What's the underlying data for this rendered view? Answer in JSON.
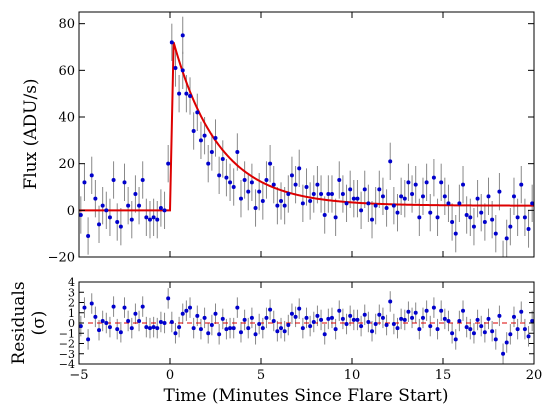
{
  "chart_data": [
    {
      "type": "scatter",
      "title": "",
      "xlabel": "Time (Minutes Since Flare Start)",
      "ylabel": "Flux (ADU/s)",
      "xlim": [
        -5,
        20
      ],
      "ylim": [
        -20,
        85
      ],
      "xticks": [
        "−5",
        "0",
        "5",
        "10",
        "15",
        "20"
      ],
      "yticks": [
        "−20",
        "0",
        "20",
        "40",
        "60",
        "80"
      ],
      "grid": false,
      "legend": "none",
      "colors": {
        "points": "#0000cc",
        "errorbars": "#888888",
        "model": "#dd0000"
      },
      "series": [
        {
          "kind": "data_points_with_errorbars",
          "errorbar": 8,
          "x": [
            -4.9,
            -4.7,
            -4.5,
            -4.3,
            -4.1,
            -3.9,
            -3.7,
            -3.5,
            -3.3,
            -3.1,
            -2.9,
            -2.7,
            -2.5,
            -2.3,
            -2.1,
            -1.9,
            -1.7,
            -1.5,
            -1.3,
            -1.1,
            -0.9,
            -0.7,
            -0.5,
            -0.3,
            -0.1,
            0.1,
            0.3,
            0.5,
            0.7,
            0.9,
            1.1,
            1.3,
            1.5,
            1.7,
            1.9,
            2.1,
            2.3,
            2.5,
            2.7,
            2.9,
            3.1,
            3.3,
            3.5,
            3.7,
            3.9,
            4.1,
            4.3,
            4.5,
            4.7,
            4.9,
            5.1,
            5.3,
            5.5,
            5.7,
            5.9,
            6.1,
            6.3,
            6.5,
            6.7,
            6.9,
            7.1,
            7.3,
            7.5,
            7.7,
            7.9,
            8.1,
            8.3,
            8.5,
            8.7,
            8.9,
            9.1,
            9.3,
            9.5,
            9.7,
            9.9,
            10.1,
            10.3,
            10.5,
            10.7,
            10.9,
            11.1,
            11.3,
            11.5,
            11.7,
            11.9,
            12.1,
            12.3,
            12.5,
            12.7,
            12.9,
            13.1,
            13.3,
            13.5,
            13.7,
            13.9,
            14.1,
            14.3,
            14.5,
            14.7,
            14.9,
            15.1,
            15.3,
            15.5,
            15.7,
            15.9,
            16.1,
            16.3,
            16.5,
            16.7,
            16.9,
            17.1,
            17.3,
            17.5,
            17.7,
            17.9,
            18.1,
            18.3,
            18.5,
            18.7,
            18.9,
            19.1,
            19.3,
            19.5,
            19.7,
            19.9
          ],
          "y": [
            -2,
            12,
            -11,
            15,
            5,
            -6,
            2,
            0,
            -3,
            13,
            -5,
            -7,
            12,
            2,
            -4,
            7,
            2,
            13,
            -3,
            -4,
            -3,
            -4,
            1,
            0,
            20,
            72,
            61,
            50,
            60,
            50,
            49,
            34,
            42,
            30,
            32,
            20,
            25,
            31,
            15,
            22,
            14,
            12,
            10,
            25,
            5,
            13,
            8,
            12,
            1,
            8,
            4,
            13,
            20,
            11,
            2,
            4,
            2,
            7,
            15,
            11,
            18,
            3,
            10,
            4,
            7,
            11,
            7,
            -2,
            7,
            7,
            -3,
            13,
            7,
            3,
            9,
            5,
            5,
            0,
            9,
            3,
            -4,
            2,
            9,
            6,
            1,
            21,
            2,
            -1,
            6,
            5,
            12,
            7,
            11,
            -3,
            6,
            12,
            -1,
            14,
            -3,
            12,
            6,
            3,
            -5,
            -10,
            3,
            11,
            -2,
            -3,
            -7,
            5,
            -1,
            -5,
            6,
            -4,
            -10,
            8,
            -21,
            -12,
            -7,
            6,
            -3,
            11,
            -3,
            -8,
            3
          ],
          "notable_points": [
            {
              "x": 0.7,
              "y": 75
            }
          ]
        },
        {
          "kind": "model_curve",
          "form": "flat zero baseline, linear rise from t=0 to peak 72 at t=0.2 min, then decay toward ~2 (tau ≈ 2.5 min)",
          "peak_time": 0.2,
          "peak_flux": 72
        }
      ]
    },
    {
      "type": "scatter",
      "title": "",
      "xlabel": "Time (Minutes Since Flare Start)",
      "ylabel": "Residuals",
      "ylabel2": "(σ)",
      "xlim": [
        -5,
        20
      ],
      "ylim": [
        -4,
        4
      ],
      "yticks": [
        "4",
        "3",
        "2",
        "1",
        "0",
        "−1",
        "−2",
        "−3",
        "−4"
      ],
      "reference_line": {
        "y": 0,
        "style": "dashed",
        "color": "#dd0000"
      },
      "series": [
        {
          "kind": "residuals_with_errorbars",
          "errorbar": 1,
          "residuals": [
            -0.3,
            1.5,
            -1.6,
            1.9,
            0.6,
            -0.7,
            0.2,
            0.0,
            -0.4,
            1.6,
            -0.6,
            -0.9,
            1.5,
            0.2,
            -0.5,
            0.9,
            0.2,
            1.6,
            -0.4,
            -0.5,
            -0.4,
            -0.5,
            0.1,
            0.0,
            2.4,
            0.1,
            -1.0,
            -0.4,
            0.9,
            1.2,
            1.5,
            -0.5,
            0.7,
            -0.6,
            0.5,
            -1.0,
            -0.2,
            0.9,
            -1.1,
            0.4,
            -0.6,
            -0.5,
            -0.5,
            1.5,
            -0.9,
            0.3,
            -0.5,
            0.5,
            -1.1,
            -0.1,
            -0.5,
            0.5,
            1.3,
            0.2,
            -0.8,
            -0.5,
            -0.8,
            -0.2,
            0.9,
            0.6,
            1.4,
            -0.5,
            0.5,
            -0.3,
            0.1,
            0.7,
            0.3,
            -1.1,
            0.4,
            0.5,
            -0.6,
            1.2,
            0.4,
            -0.1,
            0.7,
            0.3,
            0.3,
            -0.3,
            0.8,
            0.1,
            -0.8,
            -0.1,
            0.8,
            0.5,
            -0.2,
            2.1,
            -0.1,
            -0.5,
            0.4,
            0.3,
            1.1,
            0.5,
            1.0,
            -0.6,
            0.5,
            1.2,
            -0.3,
            1.5,
            -0.6,
            1.2,
            0.4,
            0.2,
            -1.0,
            -1.6,
            0.2,
            1.2,
            -0.4,
            -0.6,
            -1.0,
            0.3,
            -0.3,
            -0.9,
            0.4,
            -0.8,
            -1.6,
            0.7,
            -3.0,
            -1.9,
            -1.1,
            0.6,
            -0.6,
            1.1,
            -0.6,
            -1.3,
            0.2
          ]
        }
      ]
    }
  ]
}
